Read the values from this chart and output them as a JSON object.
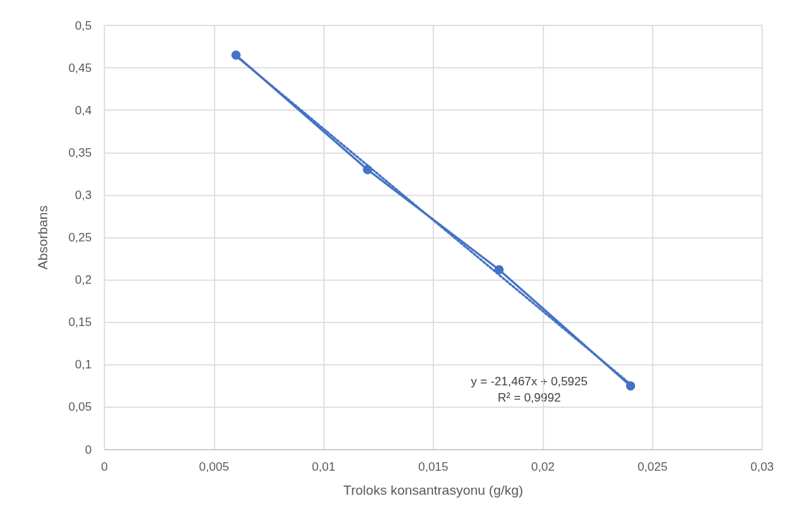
{
  "chart_data": {
    "type": "line",
    "xlabel": "Troloks konsantrasyonu (g/kg)",
    "ylabel": "Absorbans",
    "xlim": [
      0,
      0.03
    ],
    "xticks": [
      0,
      {
        "value": 0.005,
        "label": "0,005"
      },
      {
        "value": 0.01,
        "label": "0,01"
      },
      {
        "value": 0.015,
        "label": "0,015"
      },
      {
        "value": 0.02,
        "label": "0,02"
      },
      {
        "value": 0.025,
        "label": "0,025"
      },
      {
        "value": 0.03,
        "label": "0,03"
      }
    ],
    "ylim": [
      0,
      0.5
    ],
    "yticks": [
      0,
      {
        "value": 0.05,
        "label": "0,05"
      },
      {
        "value": 0.1,
        "label": "0,1"
      },
      {
        "value": 0.15,
        "label": "0,15"
      },
      {
        "value": 0.2,
        "label": "0,2"
      },
      {
        "value": 0.25,
        "label": "0,25"
      },
      {
        "value": 0.3,
        "label": "0,3"
      },
      {
        "value": 0.35,
        "label": "0,35"
      },
      {
        "value": 0.4,
        "label": "0,4"
      },
      {
        "value": 0.45,
        "label": "0,45"
      },
      {
        "value": 0.5,
        "label": "0,5"
      }
    ],
    "grid": true,
    "series": [
      {
        "type": "line",
        "color": "#4472c4",
        "x": [
          0.006,
          0.012,
          0.018,
          0.024
        ],
        "values": [
          0.465,
          0.33,
          0.212,
          0.075
        ],
        "marker": "circle",
        "line_style": "solid"
      },
      {
        "type": "line",
        "color": "#4472c4",
        "x": [
          0.006,
          0.024
        ],
        "values": [
          0.464,
          0.077
        ],
        "marker": "none",
        "line_style": "dotted"
      }
    ],
    "annotations": [
      "y = -21,467x + 0,5925",
      "R² = 0,9992"
    ]
  }
}
